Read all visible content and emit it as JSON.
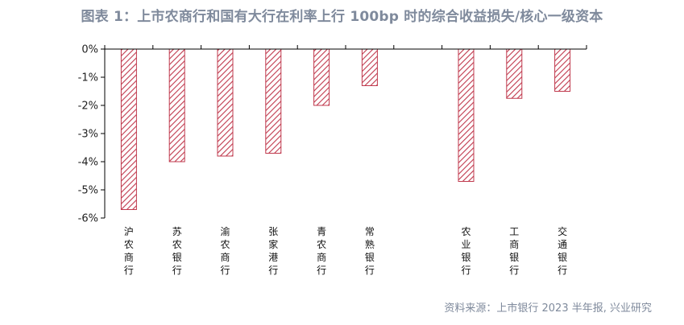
{
  "title": "图表 1：上市农商行和国有大行在利率上行 100bp 时的综合收益损失/核心一级资本",
  "source": "资料来源：上市银行 2023 半年报, 兴业研究",
  "colors": {
    "bar_stroke": "#c0394d",
    "hatch": "#c0394d",
    "axis": "#000000",
    "title": "#7f8a9c"
  },
  "chart_data": {
    "type": "bar",
    "pattern": "diagonal-hatch",
    "categories": [
      "沪农商行",
      "苏农银行",
      "渝农商行",
      "张家港行",
      "青农商行",
      "常熟银行",
      "",
      "农业银行",
      "工商银行",
      "交通银行"
    ],
    "values": [
      -5.7,
      -4.0,
      -3.8,
      -3.7,
      -2.0,
      -1.3,
      null,
      -4.7,
      -1.75,
      -1.5
    ],
    "unit": "%",
    "ylim": [
      -6,
      0
    ],
    "yticks": [
      0,
      -1,
      -2,
      -3,
      -4,
      -5,
      -6
    ],
    "ytick_labels": [
      "0%",
      "-1%",
      "-2%",
      "-3%",
      "-4%",
      "-5%",
      "-6%"
    ],
    "xaxis_position": "top",
    "category_label_orientation": "vertical",
    "legend": "none",
    "grid": false
  }
}
